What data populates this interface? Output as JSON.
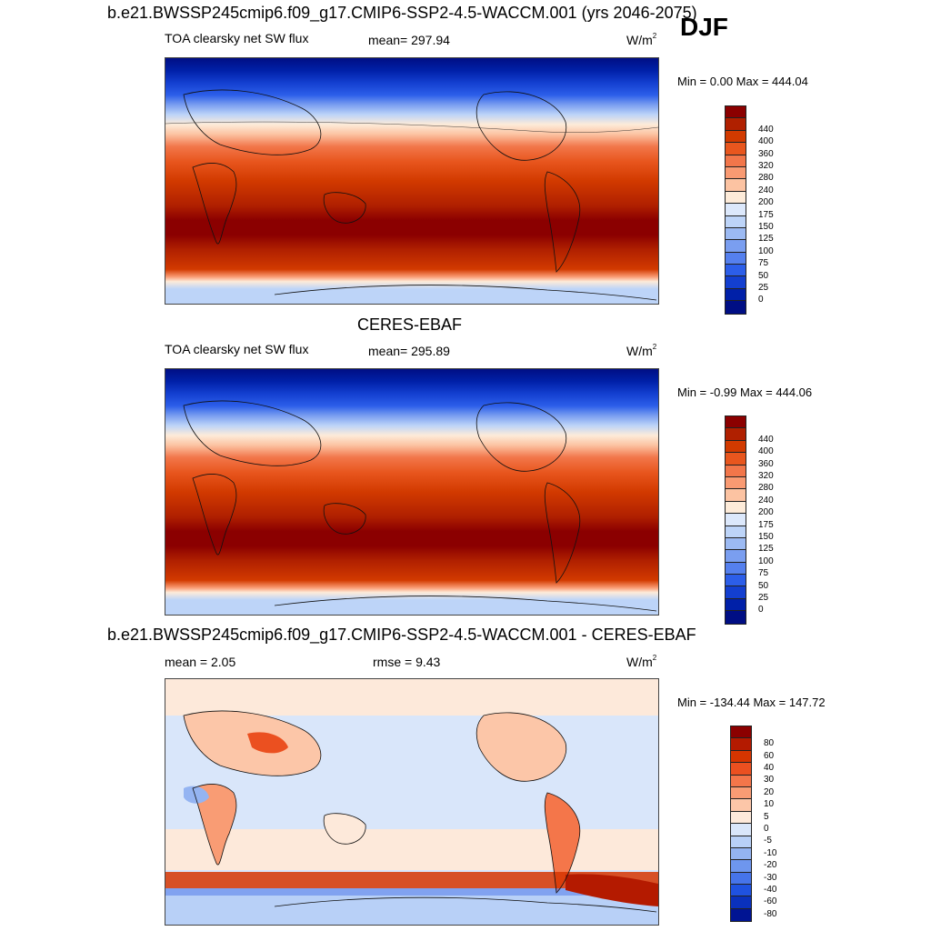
{
  "panels": [
    {
      "id": "model",
      "case_title": "b.e21.BWSSP245cmip6.f09_g17.CMIP6-SSP2-4.5-WACCM.001 (yrs 2046-2075)",
      "season": "DJF",
      "var_label": "TOA clearsky net SW flux",
      "mean_text": "mean= 297.94",
      "units_base": "W/m",
      "units_exp": "2",
      "minmax_text": "Min =   0.00 Max = 444.04",
      "colorbar": {
        "colors": [
          "#8b0000",
          "#b02000",
          "#d23a00",
          "#e8561e",
          "#f2764a",
          "#f99a72",
          "#fcc3a2",
          "#fdebd9",
          "#dce8fb",
          "#bdd4f8",
          "#9cbaf3",
          "#7a9ef0",
          "#5580ee",
          "#2c5ee9",
          "#133fd0",
          "#0020a8",
          "#000e84"
        ],
        "labels": [
          "440",
          "400",
          "360",
          "320",
          "280",
          "240",
          "200",
          "175",
          "150",
          "125",
          "100",
          "75",
          "50",
          "25",
          "0"
        ]
      }
    },
    {
      "id": "obs",
      "case_title": "CERES-EBAF",
      "var_label": "TOA clearsky net SW flux",
      "mean_text": "mean= 295.89",
      "units_base": "W/m",
      "units_exp": "2",
      "minmax_text": "Min =  -0.99 Max = 444.06",
      "colorbar": {
        "colors": [
          "#8b0000",
          "#b02000",
          "#d23a00",
          "#e8561e",
          "#f2764a",
          "#f99a72",
          "#fcc3a2",
          "#fdebd9",
          "#dce8fb",
          "#bdd4f8",
          "#9cbaf3",
          "#7a9ef0",
          "#5580ee",
          "#2c5ee9",
          "#133fd0",
          "#0020a8",
          "#000e84"
        ],
        "labels": [
          "440",
          "400",
          "360",
          "320",
          "280",
          "240",
          "200",
          "175",
          "150",
          "125",
          "100",
          "75",
          "50",
          "25",
          "0"
        ]
      }
    },
    {
      "id": "diff",
      "case_title": "b.e21.BWSSP245cmip6.f09_g17.CMIP6-SSP2-4.5-WACCM.001 - CERES-EBAF",
      "mean_text": "mean =   2.05",
      "rmse_text": "rmse =   9.43",
      "units_base": "W/m",
      "units_exp": "2",
      "minmax_text": "Min = -134.44 Max = 147.72",
      "colorbar": {
        "colors": [
          "#8b0000",
          "#b41a00",
          "#d63500",
          "#eb5020",
          "#f4764a",
          "#f99c74",
          "#fcc6a8",
          "#fde9da",
          "#d9e6fa",
          "#b8d0f7",
          "#94b4f2",
          "#6e96ee",
          "#4674ea",
          "#1f52e0",
          "#0a31bc",
          "#001493"
        ],
        "labels": [
          "80",
          "60",
          "40",
          "30",
          "20",
          "10",
          "5",
          "0",
          "-5",
          "-10",
          "-20",
          "-30",
          "-40",
          "-60",
          "-80"
        ]
      }
    }
  ]
}
